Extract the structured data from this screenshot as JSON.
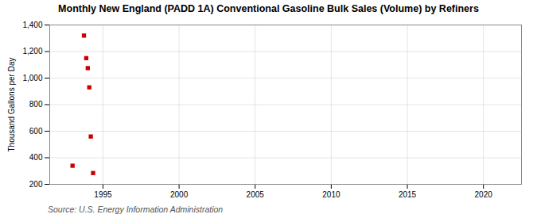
{
  "chart_data": {
    "type": "scatter",
    "title": "Monthly New England (PADD 1A) Conventional Gasoline Bulk Sales (Volume) by Refiners",
    "ylabel": "Thousand Gallons per Day",
    "source": "Source: U.S. Energy Information Administration",
    "x": [
      1993.0,
      1993.75,
      1993.9,
      1994.0,
      1994.1,
      1994.2,
      1994.35
    ],
    "values": [
      340,
      1320,
      1150,
      1075,
      930,
      560,
      285
    ],
    "color": "#cc0000",
    "marker": "square",
    "xlim": [
      1991.5,
      2022.5
    ],
    "ylim": [
      200,
      1400
    ],
    "xticks": [
      1995,
      2000,
      2005,
      2010,
      2015,
      2020
    ],
    "yticks": [
      200,
      400,
      600,
      800,
      {
        "value": 1000,
        "label": "1,000"
      },
      {
        "value": 1200,
        "label": "1,200"
      },
      {
        "value": 1400,
        "label": "1,400"
      }
    ],
    "grid": true
  }
}
